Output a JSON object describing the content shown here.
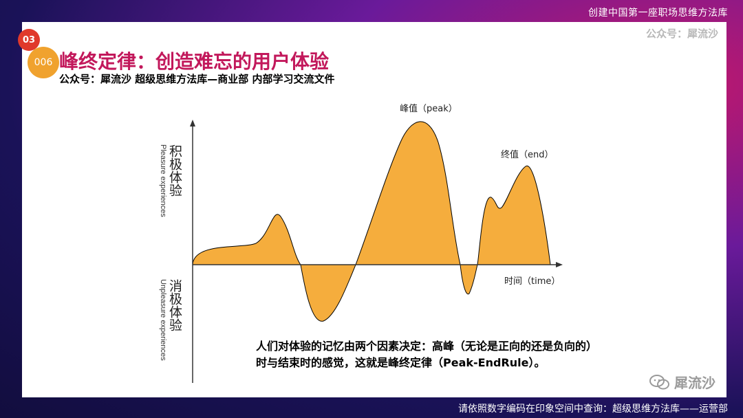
{
  "header": {
    "banner": "创建中国第一座职场思维方法库"
  },
  "footer": {
    "banner": "请依照数字编码在印象空间中查询：超级思维方法库——运营部"
  },
  "slide": {
    "watermark_top": "公众号：犀流沙",
    "badge_primary": "03",
    "badge_secondary": "006",
    "title": "峰终定律：创造难忘的用户体验",
    "subtitle": "公众号：犀流沙   超级思维方法库—商业部 内部学习交流文件",
    "caption_line1": "人们对体验的记忆由两个因素决定：高峰（无论是正向的还是负向的）",
    "caption_line2": "时与结束时的感觉，这就是峰终定律（Peak-EndRule）。",
    "watermark_bottom": "犀流沙"
  },
  "diagram": {
    "positive_cn": "积极体验",
    "positive_en": "Pleasure experiences",
    "negative_cn": "消极体验",
    "negative_en": "Unpleasure experiences",
    "peak_label": "峰值（peak）",
    "end_label": "终值（end）",
    "x_label": "时间（time）",
    "fill_color": "#f5ad3d",
    "line_color": "#000000"
  }
}
